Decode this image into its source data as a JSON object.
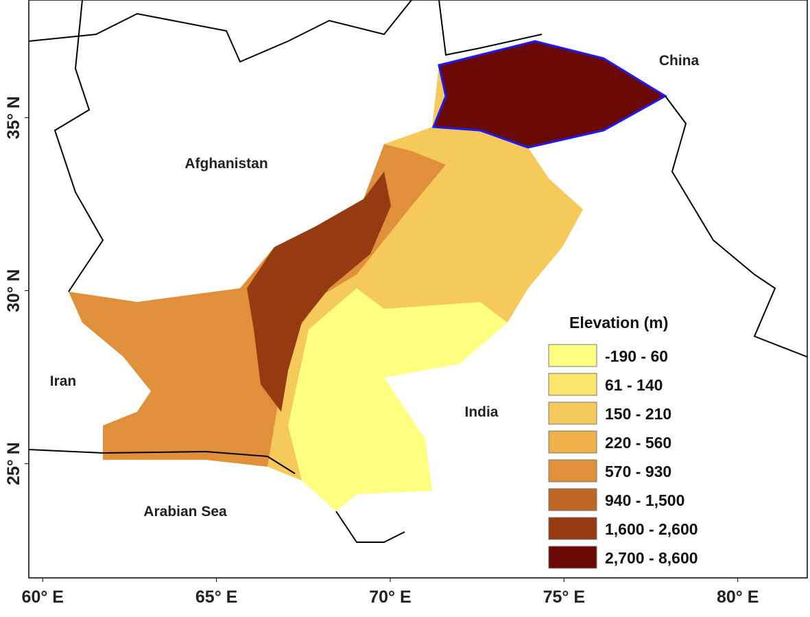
{
  "map": {
    "xlim": [
      59.6,
      82
    ],
    "ylim": [
      21.7,
      38.4
    ],
    "x_ticks": [
      {
        "value": 60,
        "label": "60° E"
      },
      {
        "value": 65,
        "label": "65° E"
      },
      {
        "value": 70,
        "label": "70° E"
      },
      {
        "value": 75,
        "label": "75° E"
      },
      {
        "value": 80,
        "label": "80° E"
      }
    ],
    "y_ticks": [
      {
        "value": 25,
        "label": "25° N"
      },
      {
        "value": 30,
        "label": "30° N"
      },
      {
        "value": 35,
        "label": "35° N"
      }
    ],
    "places": [
      "China",
      "Afghanistan",
      "Iran",
      "India",
      "Arabian Sea"
    ],
    "legend": {
      "title": "Elevation (m)",
      "entries": [
        {
          "label": "-190 - 60",
          "color": "#ffff80"
        },
        {
          "label": "61 - 140",
          "color": "#fbe56a"
        },
        {
          "label": "150 - 210",
          "color": "#f5c95a"
        },
        {
          "label": "220 - 560",
          "color": "#efb04a"
        },
        {
          "label": "570 - 930",
          "color": "#e0903a"
        },
        {
          "label": "940 - 1,500",
          "color": "#bf6626"
        },
        {
          "label": "1,600 - 2,600",
          "color": "#963a12"
        },
        {
          "label": "2,700 - 8,600",
          "color": "#6b0a05"
        }
      ]
    }
  }
}
